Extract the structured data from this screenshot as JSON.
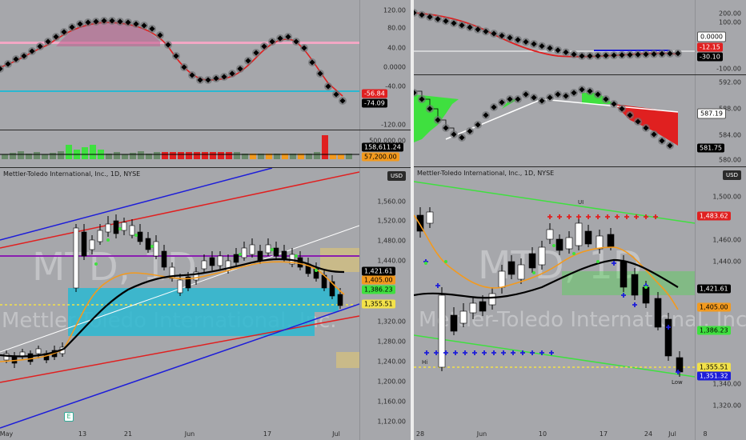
{
  "colors": {
    "bg": "#a6a7ab",
    "up": "#ffffff",
    "down": "#000000",
    "red": "#e02020",
    "blue": "#1d1dd9",
    "cyan": "#2ab8d1",
    "pink": "#f2a7c4",
    "orange": "#f39a1e",
    "green": "#3fe03f",
    "yellow": "#f3e24a"
  },
  "left": {
    "symbol": "Mettler-Toledo International, Inc., 1D, NYSE",
    "currency": "USD",
    "watermark_ticker": "MTD, 1D",
    "watermark_name": "Mettler-Toledo International, Inc.",
    "earnings_icon": "E",
    "osc": {
      "ticks": [
        "120.00",
        "80.00",
        "40.00",
        "0.0000",
        "-40.00",
        "-80.00",
        "-120.00"
      ],
      "badge_a": "-56.84",
      "badge_b": "-74.09"
    },
    "vol": {
      "tick": "500,000.00",
      "badge_a": "158,611.24",
      "badge_b": "57,200.00"
    },
    "price": {
      "ticks": [
        "1,560.00",
        "1,520.00",
        "1,480.00",
        "1,440.00",
        "1,400.00",
        "1,360.00",
        "1,320.00",
        "1,280.00",
        "1,240.00",
        "1,200.00",
        "1,160.00",
        "1,120.00"
      ],
      "badges": [
        "1,421.61",
        "1,405.00",
        "1,386.23",
        "1,355.51"
      ],
      "xticks": [
        "May",
        "13",
        "21",
        "Jun",
        "17",
        "Jul"
      ]
    }
  },
  "right": {
    "symbol": "Mettler-Toledo International, Inc., 1D, NYSE",
    "currency": "USD",
    "watermark_ticker": "MTD, 1D",
    "watermark_name": "Mettler-Toledo International, Inc.",
    "osc": {
      "ticks": [
        "200.00",
        "100.00",
        "-100.00"
      ],
      "badges": [
        "0.0000",
        "-12.15",
        "-30.10"
      ]
    },
    "mid": {
      "ticks": [
        "592.00",
        "588.00",
        "584.00",
        "580.00"
      ],
      "badges": [
        "587.19",
        "581.75"
      ]
    },
    "price": {
      "ticks": [
        "1,500.00",
        "1,480.00",
        "1,460.00",
        "1,440.00",
        "1,400.00",
        "1,380.00",
        "1,360.00",
        "1,340.00",
        "1,320.00"
      ],
      "badges": [
        "1,483.62",
        "1,421.61",
        "1,405.00",
        "1,386.23",
        "1,355.51",
        "1,351.32"
      ],
      "xticks": [
        "28",
        "Jun",
        "10",
        "17",
        "24",
        "Jul",
        "8"
      ],
      "label_hi": "Hi",
      "label_lo": "Lo",
      "label_low": "Low",
      "label_ui": "UI"
    }
  }
}
